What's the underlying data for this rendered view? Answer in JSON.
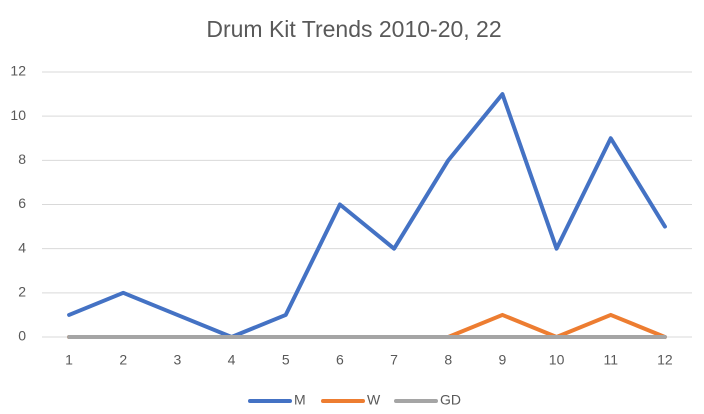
{
  "chart_data": {
    "type": "line",
    "title": "Drum Kit Trends 2010-20, 22",
    "categories": [
      "1",
      "2",
      "3",
      "4",
      "5",
      "6",
      "7",
      "8",
      "9",
      "10",
      "11",
      "12"
    ],
    "series": [
      {
        "name": "M",
        "color": "#4472c4",
        "values": [
          1,
          2,
          1,
          0,
          1,
          6,
          4,
          8,
          11,
          4,
          9,
          5
        ]
      },
      {
        "name": "W",
        "color": "#ed7d31",
        "values": [
          0,
          0,
          0,
          0,
          0,
          0,
          0,
          0,
          1,
          0,
          1,
          0
        ]
      },
      {
        "name": "GD",
        "color": "#a5a5a5",
        "values": [
          0,
          0,
          0,
          0,
          0,
          0,
          0,
          0,
          0,
          0,
          0,
          0
        ]
      }
    ],
    "ylim": [
      0,
      12
    ],
    "yticks": [
      0,
      2,
      4,
      6,
      8,
      10,
      12
    ],
    "grid": true,
    "legend": "bottom"
  }
}
